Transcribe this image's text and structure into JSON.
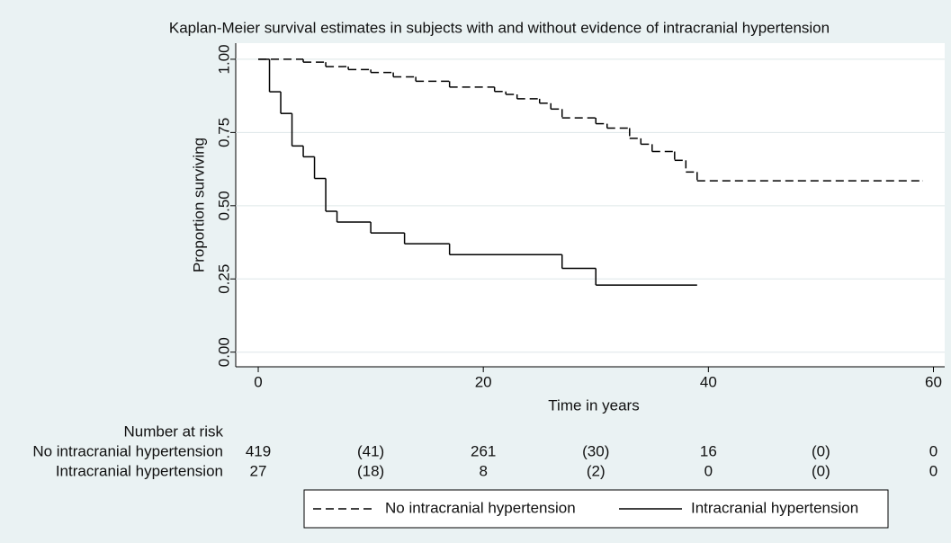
{
  "chart_data": {
    "type": "line",
    "step": true,
    "title": "Kaplan-Meier survival estimates in subjects with and without evidence of intracranial hypertension",
    "xlabel": "Time in years",
    "ylabel": "Proportion surviving",
    "xlim": [
      -2,
      61
    ],
    "ylim": [
      -0.05,
      1.055
    ],
    "xticks": [
      0,
      20,
      40,
      60
    ],
    "yticks": [
      {
        "value": 0,
        "label": "0.00"
      },
      {
        "value": 0.25,
        "label": "0.25"
      },
      {
        "value": 0.5,
        "label": "0.50"
      },
      {
        "value": 0.75,
        "label": "0.75"
      },
      {
        "value": 1,
        "label": "1.00"
      }
    ],
    "grid": true,
    "series": [
      {
        "name": "No intracranial hypertension",
        "color": "#000000",
        "linestyle": "dashed",
        "x": [
          0,
          4,
          6,
          8,
          10,
          12,
          14,
          17,
          21,
          22,
          23,
          25,
          26,
          27,
          30,
          31,
          33,
          34,
          35,
          37,
          38,
          39,
          59
        ],
        "values": [
          1,
          0.99,
          0.975,
          0.965,
          0.955,
          0.94,
          0.925,
          0.905,
          0.89,
          0.88,
          0.865,
          0.85,
          0.83,
          0.8,
          0.78,
          0.765,
          0.73,
          0.71,
          0.685,
          0.655,
          0.615,
          0.585,
          0.585
        ]
      },
      {
        "name": "Intracranial hypertension",
        "color": "#000000",
        "linestyle": "solid",
        "x": [
          0,
          1,
          2,
          3,
          4,
          5,
          6,
          7,
          10,
          13,
          17,
          27,
          30,
          39
        ],
        "values": [
          1,
          0.889,
          0.815,
          0.704,
          0.667,
          0.593,
          0.481,
          0.444,
          0.407,
          0.37,
          0.333,
          0.286,
          0.229,
          0.229
        ]
      }
    ],
    "risk_table": {
      "title": "Number at risk",
      "times": [
        0,
        10,
        20,
        30,
        40,
        50,
        60
      ],
      "rows": [
        {
          "name": "No intracranial hypertension",
          "values": [
            419,
            "(41)",
            261,
            "(30)",
            16,
            "(0)",
            0
          ]
        },
        {
          "name": "Intracranial hypertension",
          "values": [
            27,
            "(18)",
            8,
            "(2)",
            0,
            "(0)",
            0
          ]
        }
      ]
    }
  }
}
